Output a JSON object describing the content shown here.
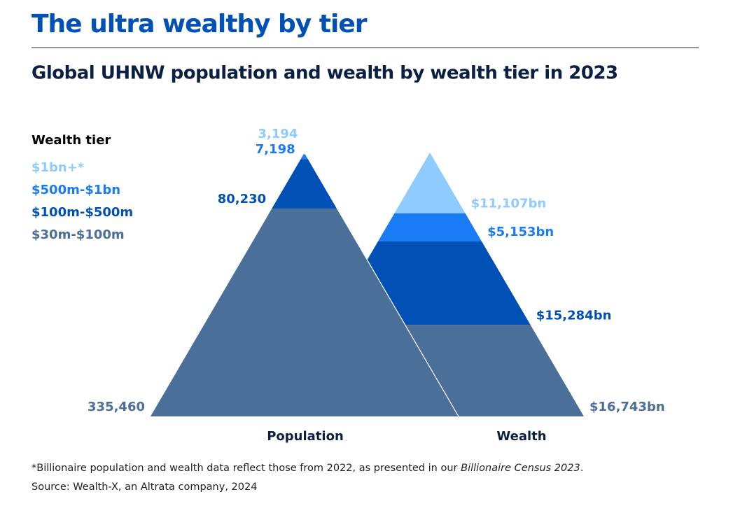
{
  "chart_data": {
    "type": "pyramid",
    "title": "The ultra wealthy by tier",
    "subtitle": "Global UHNW population and wealth by wealth tier in 2023",
    "legend_title": "Wealth tier",
    "categories": [
      "$1bn+*",
      "$500m-$1bn",
      "$100m-$500m",
      "$30m-$100m"
    ],
    "colors": [
      "#8fcbff",
      "#1a7cf5",
      "#0050b5",
      "#4a6f99"
    ],
    "series": [
      {
        "name": "Population",
        "values": [
          3194,
          7198,
          80230,
          335460
        ],
        "value_labels": [
          "3,194",
          "7,198",
          "80,230",
          "335,460"
        ]
      },
      {
        "name": "Wealth",
        "values": [
          11107,
          5153,
          15284,
          16743
        ],
        "value_labels": [
          "$11,107bn",
          "$5,153bn",
          "$15,284bn",
          "$16,743bn"
        ]
      }
    ],
    "footnote": [
      "*Billionaire population and wealth data reflect those from 2022, as presented in our ",
      "Billionaire Census 2023",
      "."
    ],
    "source": "Source: Wealth-X, an Altrata company, 2024"
  }
}
